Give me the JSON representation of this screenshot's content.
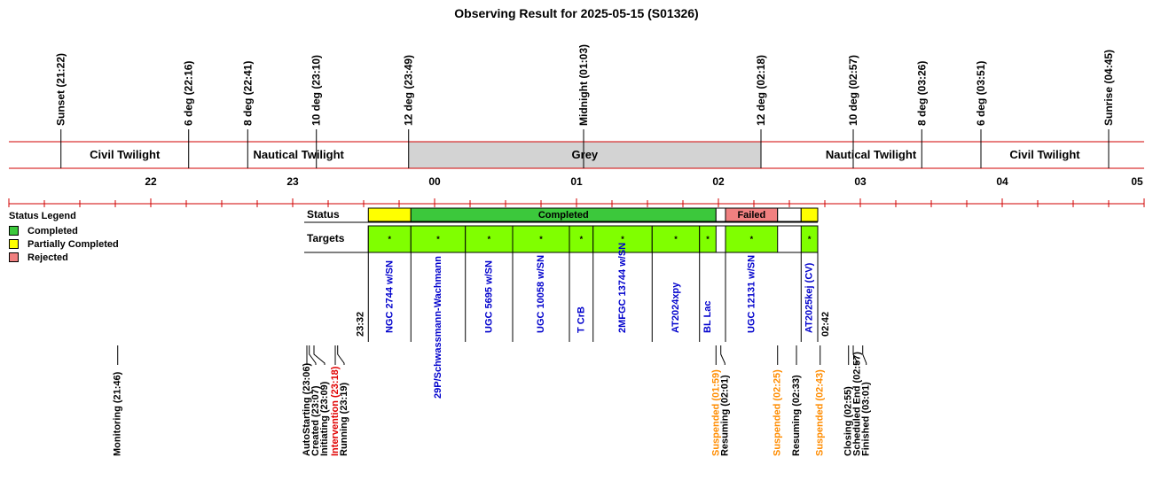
{
  "title": "Observing Result for 2025-05-15 (S01326)",
  "colors": {
    "completed": "#3cc83c",
    "partial": "#ffff00",
    "rejected": "#f08080",
    "target": "#80ff00",
    "grey": "#d3d3d3",
    "red_line": "#d00000",
    "target_text": "#0000cc",
    "suspended": "#ff8c00",
    "intervention": "#e00000"
  },
  "time_marks": [
    {
      "label": "Sunset (21:22)",
      "hour": 21.367
    },
    {
      "label": "6 deg (22:16)",
      "hour": 22.267
    },
    {
      "label": "8 deg (22:41)",
      "hour": 22.683
    },
    {
      "label": "10 deg (23:10)",
      "hour": 23.167
    },
    {
      "label": "12 deg (23:49)",
      "hour": 23.817
    },
    {
      "label": "Midnight (01:03)",
      "hour": 25.05
    },
    {
      "label": "12 deg (02:18)",
      "hour": 26.3
    },
    {
      "label": "10 deg (02:57)",
      "hour": 26.95
    },
    {
      "label": "8 deg (03:26)",
      "hour": 27.433
    },
    {
      "label": "6 deg (03:51)",
      "hour": 27.85
    },
    {
      "label": "Sunrise (04:45)",
      "hour": 28.75
    }
  ],
  "periods": [
    {
      "label": "Civil Twilight",
      "start": 21.367,
      "end": 22.267,
      "grey": false
    },
    {
      "label": "Nautical Twilight",
      "start": 22.267,
      "end": 23.817,
      "grey": false
    },
    {
      "label": "Grey",
      "start": 23.817,
      "end": 26.3,
      "grey": true
    },
    {
      "label": "Nautical Twilight",
      "start": 26.3,
      "end": 27.85,
      "grey": false
    },
    {
      "label": "Civil Twilight",
      "start": 27.85,
      "end": 28.75,
      "grey": false
    }
  ],
  "axis": {
    "start_hour": 21.0,
    "end_hour": 29.0,
    "tick_labels": [
      {
        "label": "22",
        "hour": 22
      },
      {
        "label": "23",
        "hour": 23
      },
      {
        "label": "00",
        "hour": 24
      },
      {
        "label": "01",
        "hour": 25
      },
      {
        "label": "02",
        "hour": 26
      },
      {
        "label": "03",
        "hour": 27
      },
      {
        "label": "04",
        "hour": 28
      },
      {
        "label": "05",
        "hour": 29
      }
    ]
  },
  "status_row_label": "Status",
  "targets_row_label": "Targets",
  "status_segments": [
    {
      "status": "partial",
      "start": 23.533,
      "end": 23.833,
      "label": ""
    },
    {
      "status": "completed",
      "start": 23.833,
      "end": 25.983,
      "label": "Completed"
    },
    {
      "status": "empty",
      "start": 25.983,
      "end": 26.05,
      "label": ""
    },
    {
      "status": "rejected",
      "start": 26.05,
      "end": 26.417,
      "label": "Failed"
    },
    {
      "status": "empty",
      "start": 26.417,
      "end": 26.583,
      "label": ""
    },
    {
      "status": "partial",
      "start": 26.583,
      "end": 26.7,
      "label": ""
    }
  ],
  "targets": [
    {
      "name": "NGC 2744 w/SN",
      "start": 23.533,
      "end": 23.833,
      "marker": "*",
      "label_pos": "top"
    },
    {
      "name": "29P/Schwassmann-Wachmann",
      "start": 23.833,
      "end": 24.217,
      "marker": "*",
      "label_pos": "long"
    },
    {
      "name": "UGC 5695 w/SN",
      "start": 24.217,
      "end": 24.55,
      "marker": "*",
      "label_pos": "top"
    },
    {
      "name": "UGC 10058 w/SN",
      "start": 24.55,
      "end": 24.95,
      "marker": "*",
      "label_pos": "top"
    },
    {
      "name": "T CrB",
      "start": 24.95,
      "end": 25.117,
      "marker": "*",
      "label_pos": "top"
    },
    {
      "name": "2MFGC 13744 w/SN",
      "start": 25.117,
      "end": 25.533,
      "marker": "*",
      "label_pos": "top"
    },
    {
      "name": "AT2024xpy",
      "start": 25.533,
      "end": 25.867,
      "marker": "*",
      "label_pos": "top"
    },
    {
      "name": "BL Lac",
      "start": 25.867,
      "end": 25.983,
      "marker": "*",
      "label_pos": "top"
    },
    {
      "name": "UGC 12131 w/SN",
      "start": 26.05,
      "end": 26.417,
      "marker": "*",
      "label_pos": "top"
    },
    {
      "name": "AT2025kej (CV)",
      "start": 26.583,
      "end": 26.7,
      "marker": "*",
      "label_pos": "top"
    }
  ],
  "target_range": {
    "start_label": "23:32",
    "start": 23.533,
    "end_label": "02:42",
    "end": 26.7
  },
  "events": [
    {
      "label": "Monitoring (21:46)",
      "hour": 21.767,
      "kind": "normal"
    },
    {
      "label": "AutoStarting (23:06)",
      "hour": 23.1,
      "kind": "normal"
    },
    {
      "label": "Created (23:07)",
      "hour": 23.117,
      "kind": "normal"
    },
    {
      "label": "Initiating (23:09)",
      "hour": 23.15,
      "kind": "normal"
    },
    {
      "label": "Intervention (23:18)",
      "hour": 23.3,
      "kind": "intervention"
    },
    {
      "label": "Running (23:19)",
      "hour": 23.317,
      "kind": "normal"
    },
    {
      "label": "Suspended (01:59)",
      "hour": 25.983,
      "kind": "suspended"
    },
    {
      "label": "Resuming (02:01)",
      "hour": 26.017,
      "kind": "normal"
    },
    {
      "label": "Suspended (02:25)",
      "hour": 26.417,
      "kind": "suspended"
    },
    {
      "label": "Resuming (02:33)",
      "hour": 26.55,
      "kind": "normal"
    },
    {
      "label": "Suspended (02:43)",
      "hour": 26.717,
      "kind": "suspended"
    },
    {
      "label": "Closing (02:55)",
      "hour": 26.917,
      "kind": "normal"
    },
    {
      "label": "Scheduled End (02:57)",
      "hour": 26.95,
      "kind": "normal"
    },
    {
      "label": "Finished (03:01)",
      "hour": 27.017,
      "kind": "normal"
    }
  ],
  "legend": {
    "title": "Status Legend",
    "items": [
      {
        "label": "Completed",
        "color": "#3cc83c"
      },
      {
        "label": "Partially Completed",
        "color": "#ffff00"
      },
      {
        "label": "Rejected",
        "color": "#f08080"
      }
    ]
  }
}
